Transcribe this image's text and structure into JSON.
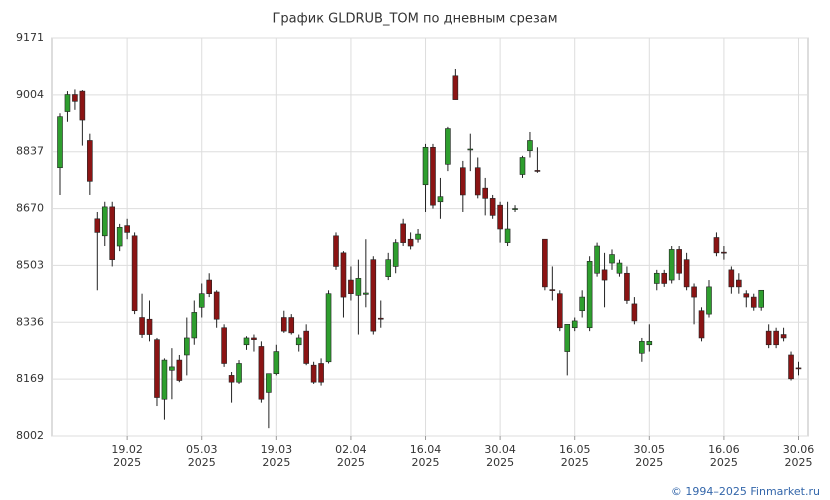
{
  "chart_data": {
    "type": "candlestick",
    "title": "График GLDRUB_TOM по дневным срезам",
    "footer": "© 1994–2025 Finmarket.ru",
    "up_color": "#2e9e2e",
    "down_color": "#8b1414",
    "grid": true,
    "ylim": [
      8002,
      9171
    ],
    "yticks": [
      8002,
      8169,
      8336,
      8503,
      8670,
      8837,
      9004,
      9171
    ],
    "categories": [
      null,
      null,
      null,
      null,
      null,
      null,
      null,
      null,
      null,
      "19.02 2025",
      null,
      null,
      null,
      null,
      null,
      null,
      null,
      null,
      null,
      "05.03 2025",
      null,
      null,
      null,
      null,
      null,
      null,
      null,
      null,
      null,
      "19.03 2025",
      null,
      null,
      null,
      null,
      null,
      null,
      null,
      null,
      null,
      "02.04 2025",
      null,
      null,
      null,
      null,
      null,
      null,
      null,
      null,
      null,
      "16.04 2025",
      null,
      null,
      null,
      null,
      null,
      null,
      null,
      null,
      null,
      "30.04 2025",
      null,
      null,
      null,
      null,
      null,
      null,
      null,
      null,
      null,
      "16.05 2025",
      null,
      null,
      null,
      null,
      null,
      null,
      null,
      null,
      null,
      "30.05 2025",
      null,
      null,
      null,
      null,
      null,
      null,
      null,
      null,
      null,
      "16.06 2025",
      null,
      null,
      null,
      null,
      null,
      null,
      null,
      null,
      null,
      "30.06 2025"
    ],
    "open": [
      8790,
      8955,
      9005,
      9015,
      8870,
      8640,
      8590,
      8675,
      8560,
      8620,
      8590,
      8350,
      8345,
      8285,
      8110,
      8195,
      8225,
      8240,
      8290,
      8380,
      8460,
      8425,
      8320,
      8180,
      8160,
      8270,
      8290,
      8265,
      8130,
      8185,
      8350,
      8350,
      8270,
      8310,
      8210,
      8215,
      8220,
      8590,
      8540,
      8460,
      8415,
      8418,
      8520,
      8348,
      8470,
      8500,
      8625,
      8580,
      8580,
      8740,
      8850,
      8690,
      8800,
      9060,
      8790,
      8843,
      8790,
      8730,
      8700,
      8680,
      8570,
      8668,
      8770,
      8840,
      8782,
      8580,
      8432,
      8420,
      8250,
      8320,
      8370,
      8320,
      8480,
      8490,
      8510,
      8480,
      8480,
      8390,
      8245,
      8270,
      8450,
      8480,
      8460,
      8550,
      8520,
      8440,
      8370,
      8360,
      8585,
      8542,
      8490,
      8460,
      8420,
      8410,
      8380,
      8310,
      8310,
      8300,
      8240,
      8202
    ],
    "high": [
      8950,
      9015,
      9020,
      9018,
      8890,
      8660,
      8690,
      8690,
      8625,
      8640,
      8600,
      8420,
      8400,
      8290,
      8230,
      8260,
      8240,
      8350,
      8400,
      8450,
      8480,
      8430,
      8330,
      8190,
      8225,
      8295,
      8300,
      8280,
      8185,
      8270,
      8370,
      8360,
      8300,
      8330,
      8220,
      8230,
      8430,
      8600,
      8545,
      8500,
      8520,
      8580,
      8530,
      8400,
      8540,
      8580,
      8640,
      8600,
      8610,
      8860,
      8860,
      8760,
      8910,
      9080,
      8810,
      8890,
      8820,
      8760,
      8710,
      8690,
      8690,
      8680,
      8825,
      8895,
      8850,
      8580,
      8500,
      8430,
      8330,
      8350,
      8430,
      8530,
      8570,
      8540,
      8550,
      8520,
      8500,
      8410,
      8290,
      8330,
      8490,
      8490,
      8560,
      8560,
      8540,
      8450,
      8380,
      8460,
      8600,
      8560,
      8500,
      8480,
      8430,
      8420,
      8430,
      8330,
      8320,
      8320,
      8250,
      8220
    ],
    "low": [
      8710,
      8925,
      8960,
      8855,
      8710,
      8430,
      8560,
      8500,
      8545,
      8580,
      8360,
      8290,
      8280,
      8090,
      8050,
      8110,
      8160,
      8180,
      8270,
      8350,
      8410,
      8320,
      8205,
      8100,
      8155,
      8255,
      8250,
      8100,
      8025,
      8180,
      8305,
      8300,
      8250,
      8210,
      8155,
      8150,
      8215,
      8490,
      8350,
      8400,
      8300,
      8380,
      8300,
      8320,
      8460,
      8480,
      8560,
      8550,
      8570,
      8660,
      8670,
      8640,
      8780,
      8990,
      8660,
      8780,
      8700,
      8650,
      8640,
      8570,
      8560,
      8660,
      8760,
      8820,
      8775,
      8430,
      8400,
      8310,
      8180,
      8310,
      8350,
      8310,
      8470,
      8380,
      8490,
      8470,
      8390,
      8330,
      8220,
      8250,
      8430,
      8440,
      8450,
      8460,
      8430,
      8330,
      8280,
      8350,
      8530,
      8520,
      8420,
      8420,
      8380,
      8370,
      8370,
      8260,
      8260,
      8280,
      8165,
      8180
    ],
    "close": [
      8940,
      9005,
      8985,
      8930,
      8750,
      8600,
      8675,
      8520,
      8615,
      8600,
      8370,
      8300,
      8300,
      8115,
      8225,
      8205,
      8165,
      8290,
      8365,
      8420,
      8420,
      8345,
      8215,
      8160,
      8215,
      8290,
      8285,
      8110,
      8185,
      8250,
      8310,
      8305,
      8290,
      8215,
      8160,
      8160,
      8420,
      8500,
      8410,
      8420,
      8465,
      8422,
      8310,
      8345,
      8520,
      8570,
      8570,
      8560,
      8595,
      8850,
      8680,
      8705,
      8905,
      8990,
      8710,
      8845,
      8710,
      8700,
      8650,
      8610,
      8610,
      8670,
      8820,
      8870,
      8780,
      8440,
      8430,
      8320,
      8330,
      8340,
      8410,
      8515,
      8560,
      8460,
      8535,
      8510,
      8400,
      8340,
      8280,
      8280,
      8480,
      8450,
      8550,
      8480,
      8440,
      8410,
      8290,
      8440,
      8540,
      8540,
      8440,
      8440,
      8410,
      8380,
      8430,
      8270,
      8270,
      8290,
      8170,
      8200
    ]
  }
}
